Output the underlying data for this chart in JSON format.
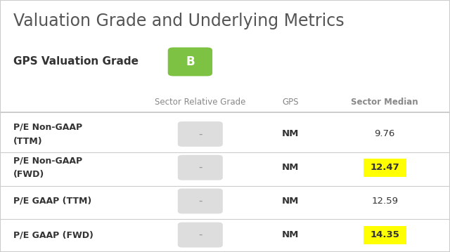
{
  "title": "Valuation Grade and Underlying Metrics",
  "grade_label": "GPS Valuation Grade",
  "grade_value": "B",
  "grade_bg_color": "#7dc243",
  "grade_text_color": "#ffffff",
  "col_headers": [
    "Sector Relative Grade",
    "GPS",
    "Sector Median"
  ],
  "rows": [
    {
      "label": "P/E Non-GAAP\n(TTM)",
      "grade": "-",
      "gps": "NM",
      "median": "9.76",
      "median_highlight": false
    },
    {
      "label": "P/E Non-GAAP\n(FWD)",
      "grade": "-",
      "gps": "NM",
      "median": "12.47",
      "median_highlight": true
    },
    {
      "label": "P/E GAAP (TTM)",
      "grade": "-",
      "gps": "NM",
      "median": "12.59",
      "median_highlight": false
    },
    {
      "label": "P/E GAAP (FWD)",
      "grade": "-",
      "gps": "NM",
      "median": "14.35",
      "median_highlight": true
    }
  ],
  "bg_color": "#ffffff",
  "border_color": "#cccccc",
  "title_color": "#555555",
  "label_color": "#333333",
  "header_color": "#888888",
  "grade_box_color": "#dddddd",
  "highlight_color": "#ffff00",
  "divider_color": "#cccccc"
}
